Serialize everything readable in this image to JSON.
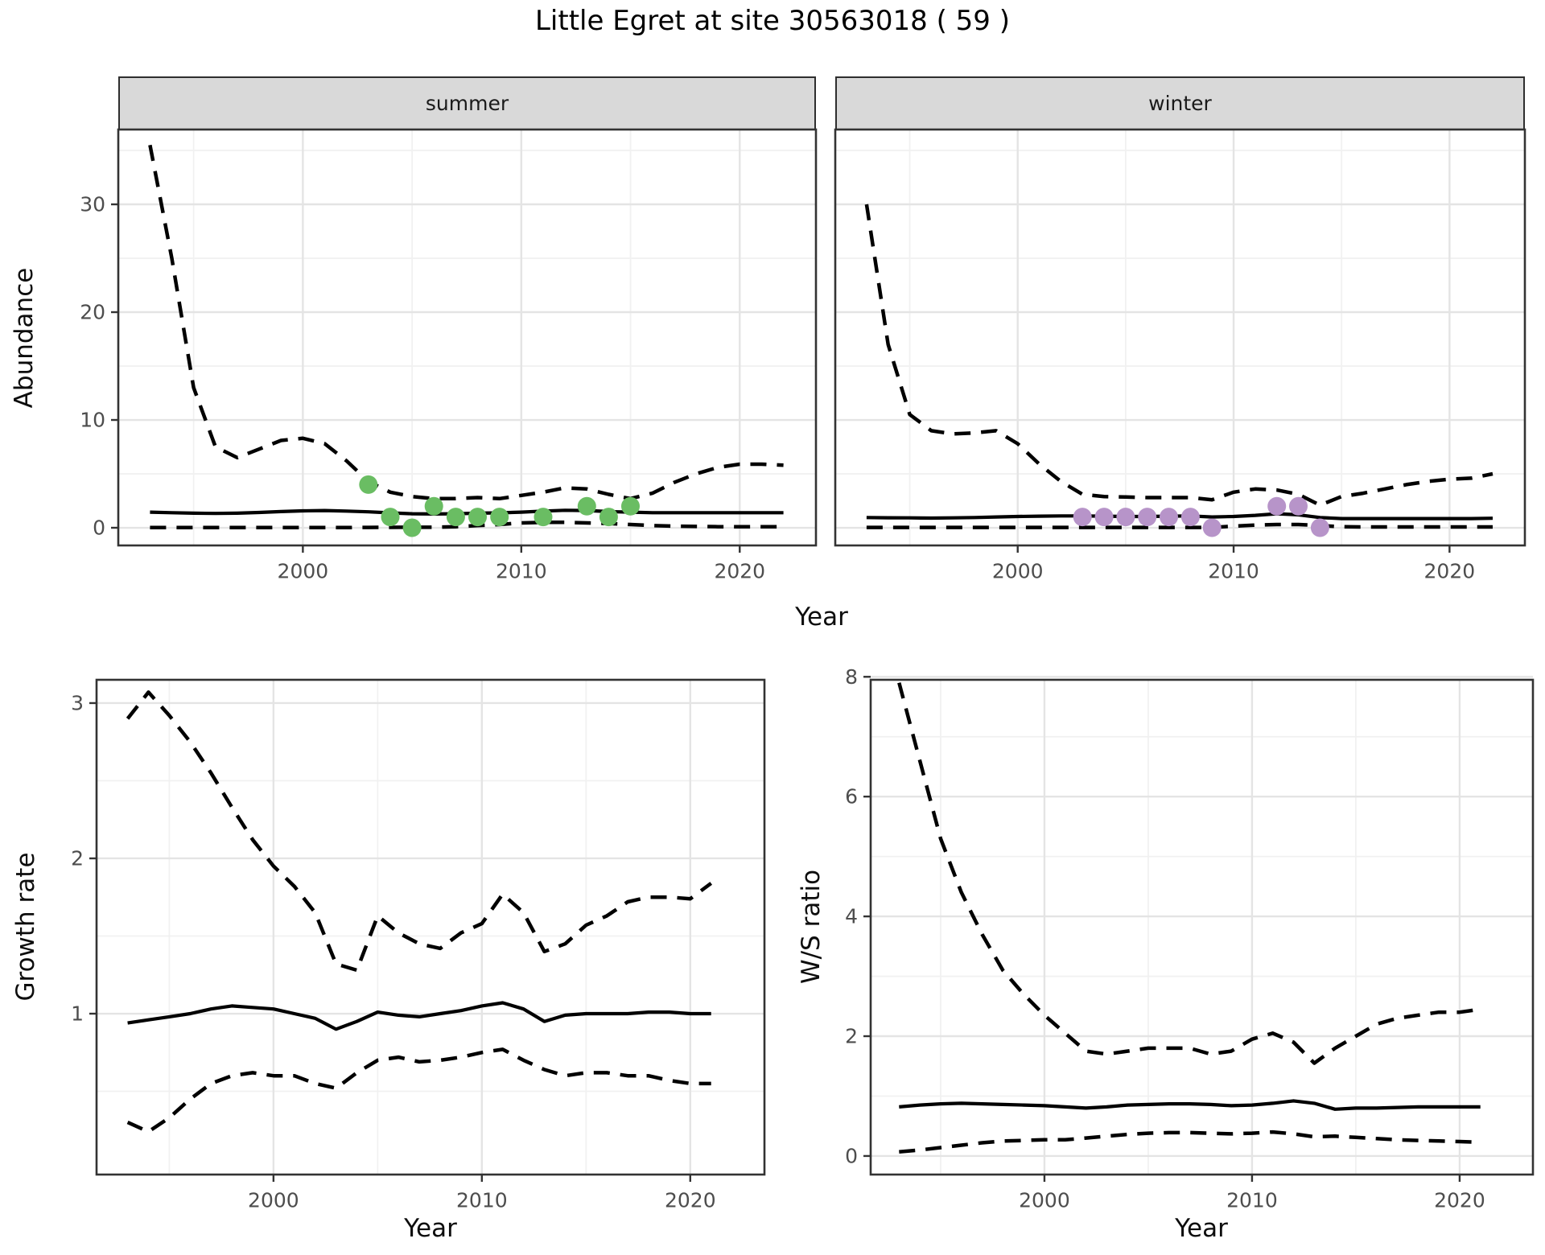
{
  "title": "Little Egret at site 30563018 ( 59 )",
  "site_id": "30563018",
  "site_code": "59",
  "species": "Little Egret",
  "colors": {
    "summer_dot": "#6abd63",
    "winter_dot": "#b794c9",
    "line": "#000000",
    "strip_fill": "#d9d9d9",
    "grid_major": "#e4e4e4",
    "grid_minor": "#f1f1f1",
    "panel_border": "#333333",
    "tick_label": "#4d4d4d"
  },
  "chart_data": [
    {
      "id": "abundance_summer",
      "type": "line",
      "facet": "summer",
      "xlabel": "Year",
      "ylabel": "Abundance",
      "xticks": [
        2000,
        2010,
        2020
      ],
      "xticks_minor": [
        1995,
        2005,
        2015
      ],
      "yticks": [
        0,
        10,
        20,
        30
      ],
      "yticks_minor": [
        5,
        15,
        25,
        35
      ],
      "xlim": [
        1991.55,
        2023.49
      ],
      "ylim": [
        -1.64,
        36.94
      ],
      "x": [
        1993,
        1994,
        1995,
        1996,
        1997,
        1998,
        1999,
        2000,
        2001,
        2002,
        2003,
        2004,
        2005,
        2006,
        2007,
        2008,
        2009,
        2010,
        2011,
        2012,
        2013,
        2014,
        2015,
        2016,
        2017,
        2018,
        2019,
        2020,
        2021,
        2022
      ],
      "series": [
        {
          "name": "upper_ci",
          "style": "dashed",
          "values": [
            35.5,
            25.0,
            13.0,
            7.5,
            6.5,
            7.3,
            8.1,
            8.3,
            7.8,
            6.2,
            4.3,
            3.3,
            2.9,
            2.7,
            2.7,
            2.8,
            2.7,
            3.0,
            3.3,
            3.7,
            3.6,
            3.1,
            2.7,
            3.2,
            4.2,
            5.0,
            5.6,
            5.9,
            5.9,
            5.8
          ]
        },
        {
          "name": "mean",
          "style": "solid",
          "values": [
            1.45,
            1.4,
            1.35,
            1.33,
            1.35,
            1.42,
            1.5,
            1.57,
            1.6,
            1.55,
            1.48,
            1.38,
            1.3,
            1.28,
            1.3,
            1.35,
            1.38,
            1.45,
            1.55,
            1.62,
            1.6,
            1.5,
            1.45,
            1.4,
            1.4,
            1.4,
            1.4,
            1.4,
            1.4,
            1.4
          ]
        },
        {
          "name": "lower_ci",
          "style": "dashed",
          "values": [
            0.02,
            0.02,
            0.02,
            0.02,
            0.02,
            0.02,
            0.02,
            0.02,
            0.02,
            0.02,
            0.03,
            0.04,
            0.05,
            0.05,
            0.1,
            0.2,
            0.3,
            0.45,
            0.5,
            0.5,
            0.45,
            0.4,
            0.3,
            0.2,
            0.15,
            0.12,
            0.1,
            0.1,
            0.1,
            0.1
          ]
        }
      ],
      "points": {
        "name": "observed_counts",
        "color": "#6abd63",
        "x": [
          2003,
          2004,
          2005,
          2006,
          2007,
          2008,
          2009,
          2011,
          2013,
          2014,
          2015
        ],
        "y": [
          4,
          1,
          0,
          2,
          1,
          1,
          1,
          1,
          2,
          1,
          2
        ]
      }
    },
    {
      "id": "abundance_winter",
      "type": "line",
      "facet": "winter",
      "xlabel": "Year",
      "ylabel": "Abundance",
      "xticks": [
        2000,
        2010,
        2020
      ],
      "xticks_minor": [
        1995,
        2005,
        2015
      ],
      "yticks": [
        0,
        10,
        20,
        30
      ],
      "yticks_minor": [
        5,
        15,
        25,
        35
      ],
      "xlim": [
        1991.55,
        2023.49
      ],
      "ylim": [
        -1.64,
        36.94
      ],
      "x": [
        1993,
        1994,
        1995,
        1996,
        1997,
        1998,
        1999,
        2000,
        2001,
        2002,
        2003,
        2004,
        2005,
        2006,
        2007,
        2008,
        2009,
        2010,
        2011,
        2012,
        2013,
        2014,
        2015,
        2016,
        2017,
        2018,
        2019,
        2020,
        2021,
        2022
      ],
      "series": [
        {
          "name": "upper_ci",
          "style": "dashed",
          "values": [
            30.0,
            17.0,
            10.5,
            9.0,
            8.7,
            8.8,
            9.0,
            7.8,
            5.9,
            4.3,
            3.1,
            2.9,
            2.85,
            2.8,
            2.8,
            2.8,
            2.6,
            3.3,
            3.6,
            3.5,
            3.1,
            2.1,
            2.9,
            3.2,
            3.6,
            4.0,
            4.3,
            4.5,
            4.6,
            5.0
          ]
        },
        {
          "name": "mean",
          "style": "solid",
          "values": [
            0.95,
            0.93,
            0.92,
            0.9,
            0.92,
            0.95,
            1.0,
            1.05,
            1.08,
            1.1,
            1.1,
            1.08,
            1.05,
            1.05,
            1.08,
            1.1,
            1.0,
            1.05,
            1.15,
            1.3,
            1.2,
            0.95,
            0.85,
            0.85,
            0.85,
            0.85,
            0.85,
            0.85,
            0.85,
            0.88
          ]
        },
        {
          "name": "lower_ci",
          "style": "dashed",
          "values": [
            0.03,
            0.03,
            0.03,
            0.03,
            0.03,
            0.03,
            0.03,
            0.03,
            0.03,
            0.03,
            0.03,
            0.03,
            0.03,
            0.03,
            0.03,
            0.03,
            0.03,
            0.15,
            0.25,
            0.3,
            0.3,
            0.2,
            0.1,
            0.08,
            0.08,
            0.08,
            0.08,
            0.08,
            0.08,
            0.08
          ]
        }
      ],
      "points": {
        "name": "observed_counts",
        "color": "#b794c9",
        "x": [
          2003,
          2004,
          2005,
          2006,
          2007,
          2008,
          2009,
          2012,
          2013,
          2014
        ],
        "y": [
          1,
          1,
          1,
          1,
          1,
          1,
          0,
          2,
          2,
          0
        ]
      }
    },
    {
      "id": "growth_rate",
      "type": "line",
      "facet": null,
      "xlabel": "Year",
      "ylabel": "Growth rate",
      "xticks": [
        2000,
        2010,
        2020
      ],
      "xticks_minor": [
        1995,
        2005,
        2015
      ],
      "yticks": [
        1,
        2,
        3
      ],
      "yticks_minor": [
        0.5,
        1.5,
        2.5
      ],
      "xlim": [
        1991.51,
        2023.56
      ],
      "ylim": [
        -0.036,
        3.15
      ],
      "x": [
        1993,
        1994,
        1995,
        1996,
        1997,
        1998,
        1999,
        2000,
        2001,
        2002,
        2003,
        2004,
        2005,
        2006,
        2007,
        2008,
        2009,
        2010,
        2011,
        2012,
        2013,
        2014,
        2015,
        2016,
        2017,
        2018,
        2019,
        2020,
        2021
      ],
      "series": [
        {
          "name": "upper_ci",
          "style": "dashed",
          "values": [
            2.9,
            3.07,
            2.92,
            2.75,
            2.55,
            2.33,
            2.12,
            1.95,
            1.82,
            1.65,
            1.32,
            1.28,
            1.63,
            1.52,
            1.45,
            1.42,
            1.52,
            1.58,
            1.77,
            1.65,
            1.4,
            1.45,
            1.57,
            1.63,
            1.72,
            1.75,
            1.75,
            1.74,
            1.84
          ]
        },
        {
          "name": "mean",
          "style": "solid",
          "values": [
            0.94,
            0.96,
            0.98,
            1.0,
            1.03,
            1.05,
            1.04,
            1.03,
            1.0,
            0.97,
            0.9,
            0.95,
            1.01,
            0.99,
            0.98,
            1.0,
            1.02,
            1.05,
            1.07,
            1.03,
            0.95,
            0.99,
            1.0,
            1.0,
            1.0,
            1.01,
            1.01,
            1.0,
            1.0
          ]
        },
        {
          "name": "lower_ci",
          "style": "dashed",
          "values": [
            0.3,
            0.24,
            0.33,
            0.45,
            0.55,
            0.6,
            0.62,
            0.6,
            0.6,
            0.55,
            0.52,
            0.62,
            0.7,
            0.72,
            0.69,
            0.7,
            0.72,
            0.75,
            0.77,
            0.7,
            0.64,
            0.6,
            0.62,
            0.62,
            0.6,
            0.6,
            0.57,
            0.55,
            0.55
          ]
        }
      ],
      "points": null
    },
    {
      "id": "ws_ratio",
      "type": "line",
      "facet": null,
      "xlabel": "Year",
      "ylabel": "W/S ratio",
      "xticks": [
        2000,
        2010,
        2020
      ],
      "xticks_minor": [
        1995,
        2005,
        2015
      ],
      "yticks": [
        0,
        2,
        4,
        6,
        8
      ],
      "yticks_minor": [
        1,
        3,
        5,
        7
      ],
      "xlim": [
        1991.63,
        2023.53
      ],
      "ylim": [
        -0.31,
        7.95
      ],
      "x": [
        1993,
        1994,
        1995,
        1996,
        1997,
        1998,
        1999,
        2000,
        2001,
        2002,
        2003,
        2004,
        2005,
        2006,
        2007,
        2008,
        2009,
        2010,
        2011,
        2012,
        2013,
        2014,
        2015,
        2016,
        2017,
        2018,
        2019,
        2020,
        2021
      ],
      "series": [
        {
          "name": "upper_ci",
          "style": "dashed",
          "values": [
            7.9,
            6.6,
            5.3,
            4.4,
            3.7,
            3.1,
            2.7,
            2.35,
            2.05,
            1.75,
            1.7,
            1.75,
            1.8,
            1.8,
            1.8,
            1.7,
            1.75,
            1.95,
            2.05,
            1.9,
            1.55,
            1.8,
            2.0,
            2.2,
            2.3,
            2.35,
            2.4,
            2.4,
            2.45
          ]
        },
        {
          "name": "mean",
          "style": "solid",
          "values": [
            0.82,
            0.85,
            0.87,
            0.88,
            0.87,
            0.86,
            0.85,
            0.84,
            0.82,
            0.8,
            0.82,
            0.85,
            0.86,
            0.87,
            0.87,
            0.86,
            0.84,
            0.85,
            0.88,
            0.92,
            0.88,
            0.78,
            0.8,
            0.8,
            0.81,
            0.82,
            0.82,
            0.82,
            0.82
          ]
        },
        {
          "name": "lower_ci",
          "style": "dashed",
          "values": [
            0.07,
            0.1,
            0.14,
            0.18,
            0.22,
            0.25,
            0.26,
            0.27,
            0.27,
            0.3,
            0.33,
            0.36,
            0.38,
            0.39,
            0.39,
            0.38,
            0.37,
            0.38,
            0.4,
            0.37,
            0.32,
            0.33,
            0.31,
            0.29,
            0.27,
            0.26,
            0.25,
            0.24,
            0.23
          ]
        }
      ],
      "points": null
    }
  ]
}
